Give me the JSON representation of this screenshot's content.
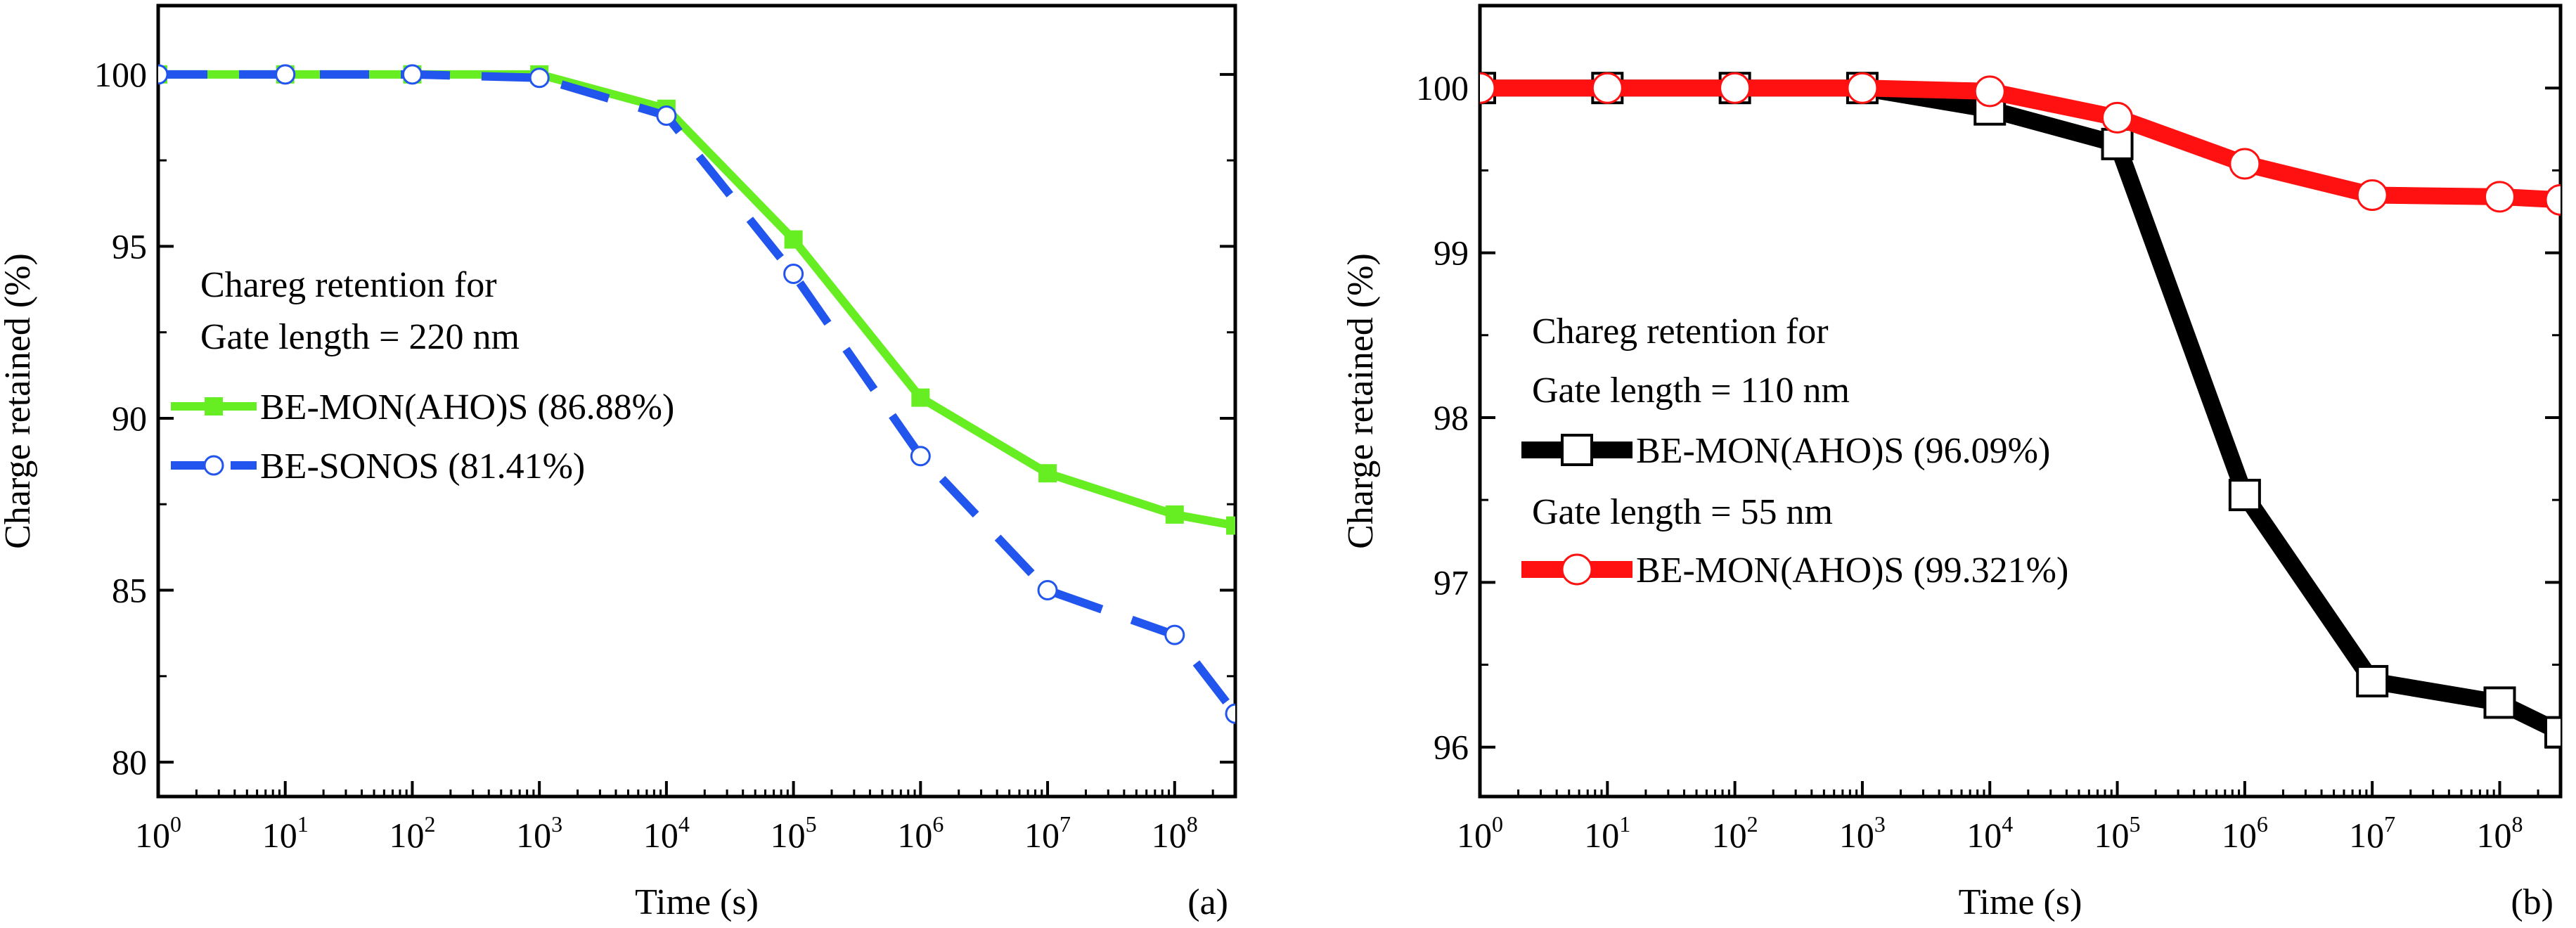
{
  "chart_data": [
    {
      "type": "line",
      "panel_label": "(a)",
      "xlabel": "Time (s)",
      "ylabel": "Charge retained (%)",
      "x_scale": "log",
      "xlim": [
        1,
        300000000
      ],
      "ylim": [
        79,
        102
      ],
      "x_ticks": [
        {
          "base": "10",
          "exp": "0",
          "value": 1
        },
        {
          "base": "10",
          "exp": "1",
          "value": 10
        },
        {
          "base": "10",
          "exp": "2",
          "value": 100
        },
        {
          "base": "10",
          "exp": "3",
          "value": 1000
        },
        {
          "base": "10",
          "exp": "4",
          "value": 10000
        },
        {
          "base": "10",
          "exp": "5",
          "value": 100000
        },
        {
          "base": "10",
          "exp": "6",
          "value": 1000000
        },
        {
          "base": "10",
          "exp": "7",
          "value": 10000000
        },
        {
          "base": "10",
          "exp": "8",
          "value": 100000000
        }
      ],
      "y_ticks": [
        {
          "label": "80",
          "value": 80
        },
        {
          "label": "85",
          "value": 85
        },
        {
          "label": "90",
          "value": 90
        },
        {
          "label": "95",
          "value": 95
        },
        {
          "label": "100",
          "value": 100
        }
      ],
      "legend_title": [
        "Chareg retention for",
        "Gate length = 220 nm"
      ],
      "series": [
        {
          "name": "BE-MON(AHO)S (86.88%)",
          "color": "#66ee22",
          "line_style": "solid",
          "marker": "filled-square",
          "x": [
            1,
            10,
            100,
            1000,
            10000,
            100000,
            1000000,
            10000000,
            100000000,
            300000000
          ],
          "y": [
            100,
            100,
            100,
            100,
            99.0,
            95.2,
            90.6,
            88.4,
            87.2,
            86.88
          ]
        },
        {
          "name": "BE-SONOS (81.41%)",
          "color": "#2255ee",
          "line_style": "dashed",
          "marker": "open-circle",
          "x": [
            1,
            10,
            100,
            1000,
            10000,
            100000,
            1000000,
            10000000,
            100000000,
            300000000
          ],
          "y": [
            100,
            100,
            100,
            99.9,
            98.8,
            94.2,
            88.9,
            85.0,
            83.7,
            81.41
          ]
        }
      ]
    },
    {
      "type": "line",
      "panel_label": "(b)",
      "xlabel": "Time (s)",
      "ylabel": "Charge retained (%)",
      "x_scale": "log",
      "xlim": [
        1,
        300000000
      ],
      "ylim": [
        95.7,
        100.5
      ],
      "x_ticks": [
        {
          "base": "10",
          "exp": "0",
          "value": 1
        },
        {
          "base": "10",
          "exp": "1",
          "value": 10
        },
        {
          "base": "10",
          "exp": "2",
          "value": 100
        },
        {
          "base": "10",
          "exp": "3",
          "value": 1000
        },
        {
          "base": "10",
          "exp": "4",
          "value": 10000
        },
        {
          "base": "10",
          "exp": "5",
          "value": 100000
        },
        {
          "base": "10",
          "exp": "6",
          "value": 1000000
        },
        {
          "base": "10",
          "exp": "7",
          "value": 10000000
        },
        {
          "base": "10",
          "exp": "8",
          "value": 100000000
        }
      ],
      "y_ticks": [
        {
          "label": "96",
          "value": 96
        },
        {
          "label": "97",
          "value": 97
        },
        {
          "label": "98",
          "value": 98
        },
        {
          "label": "99",
          "value": 99
        },
        {
          "label": "100",
          "value": 100
        }
      ],
      "legend_title": [
        "Chareg retention for",
        "Gate length = 110 nm"
      ],
      "series": [
        {
          "name": "BE-MON(AHO)S (96.09%)",
          "group_label": "",
          "color": "#000000",
          "line_style": "solid",
          "marker": "open-square",
          "x": [
            1,
            10,
            100,
            1000,
            10000,
            100000,
            1000000,
            10000000,
            100000000,
            300000000
          ],
          "y": [
            100,
            100,
            100,
            100,
            99.87,
            99.66,
            97.53,
            96.4,
            96.27,
            96.09
          ]
        },
        {
          "name": "BE-MON(AHO)S (99.321%)",
          "group_label": "Gate length = 55 nm",
          "color": "#ff1111",
          "line_style": "solid",
          "marker": "open-circle",
          "x": [
            1,
            10,
            100,
            1000,
            10000,
            100000,
            1000000,
            10000000,
            100000000,
            300000000
          ],
          "y": [
            100,
            100,
            100,
            100,
            99.98,
            99.82,
            99.54,
            99.35,
            99.34,
            99.321
          ]
        }
      ]
    }
  ]
}
